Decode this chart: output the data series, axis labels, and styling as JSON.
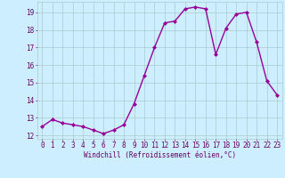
{
  "x": [
    0,
    1,
    2,
    3,
    4,
    5,
    6,
    7,
    8,
    9,
    10,
    11,
    12,
    13,
    14,
    15,
    16,
    17,
    18,
    19,
    20,
    21,
    22,
    23
  ],
  "y": [
    12.5,
    12.9,
    12.7,
    12.6,
    12.5,
    12.3,
    12.1,
    12.3,
    12.6,
    13.8,
    15.4,
    17.0,
    18.4,
    18.5,
    19.2,
    19.3,
    19.2,
    16.6,
    18.1,
    18.9,
    19.0,
    17.3,
    15.1,
    14.3
  ],
  "line_color": "#990099",
  "marker": "D",
  "marker_size": 2.0,
  "line_width": 1.0,
  "bg_color": "#cceeff",
  "grid_color": "#aacccc",
  "tick_color": "#660066",
  "xlabel": "Windchill (Refroidissement éolien,°C)",
  "ylabel": "",
  "ylim": [
    11.8,
    19.6
  ],
  "xlim": [
    -0.5,
    23.5
  ],
  "yticks": [
    12,
    13,
    14,
    15,
    16,
    17,
    18,
    19
  ],
  "xticks": [
    0,
    1,
    2,
    3,
    4,
    5,
    6,
    7,
    8,
    9,
    10,
    11,
    12,
    13,
    14,
    15,
    16,
    17,
    18,
    19,
    20,
    21,
    22,
    23
  ],
  "label_fontsize": 5.5,
  "tick_fontsize": 5.5
}
